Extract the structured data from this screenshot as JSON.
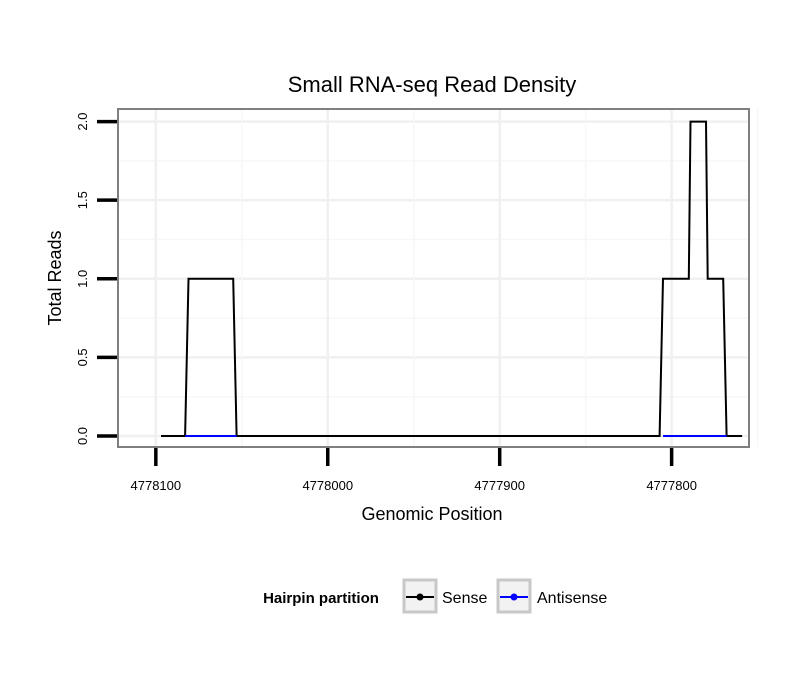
{
  "chart_data": {
    "type": "line",
    "title": "Small RNA-seq Read Density",
    "xlabel": "Genomic Position",
    "ylabel": "Total Reads",
    "x_reversed": true,
    "xlim": [
      4778122,
      4777755
    ],
    "ylim": [
      -0.07,
      2.08
    ],
    "x_ticks": [
      4778100,
      4778000,
      4777900,
      4777800
    ],
    "x_tick_labels": [
      "4778100",
      "4778000",
      "4777900",
      "4777800"
    ],
    "y_ticks": [
      0.0,
      0.5,
      1.0,
      1.5,
      2.0
    ],
    "y_tick_labels": [
      "0.0",
      "0.5",
      "1.0",
      "1.5",
      "2.0"
    ],
    "grid": true,
    "legend_title": "Hairpin partition",
    "legend_position": "bottom",
    "series": [
      {
        "name": "Sense",
        "color": "#000000",
        "x": [
          4778097,
          4778083,
          4778081,
          4778055,
          4778053,
          4777807,
          4777805,
          4777790,
          4777789,
          4777780,
          4777779,
          4777770,
          4777768,
          4777759
        ],
        "y": [
          0,
          0,
          1,
          1,
          0,
          0,
          1,
          1,
          2,
          2,
          1,
          1,
          0,
          0
        ]
      },
      {
        "name": "Antisense",
        "color": "#0000ff",
        "x": [
          4778083,
          4778053,
          4777805,
          4777768
        ],
        "y": [
          0,
          0,
          0,
          0
        ],
        "segments": [
          [
            0,
            1
          ],
          [
            2,
            3
          ]
        ]
      }
    ]
  }
}
